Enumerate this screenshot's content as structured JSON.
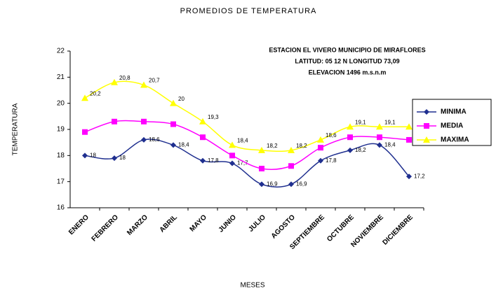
{
  "chart_data": {
    "type": "line",
    "title": "PROMEDIOS DE TEMPERATURA",
    "xlabel": "MESES",
    "ylabel": "TEMPERATURA",
    "annotations": [
      "ESTACION EL VIVERO MUNICIPIO DE MIRAFLORES",
      "LATITUD: 05 12 N     LONGITUD 73,09",
      "ELEVACION 1496 m.s.n.m"
    ],
    "categories": [
      "ENERO",
      "FEBRERO",
      "MARZO",
      "ABRIL",
      "MAYO",
      "JUNIO",
      "JULIO",
      "AGOSTO",
      "SEPTIEMBRE",
      "OCTUBRE",
      "NOVIEMBRE",
      "DICIEMBRE"
    ],
    "series": [
      {
        "name": "MINIMA",
        "color": "#1f2f8f",
        "marker": "diamond",
        "values": [
          18.0,
          17.9,
          18.6,
          18.4,
          17.8,
          17.7,
          16.9,
          16.9,
          17.8,
          18.2,
          18.4,
          17.2
        ],
        "value_labels": [
          "18",
          "18",
          "18,6",
          "18,4",
          "17,8",
          "17,7",
          "16,9",
          "16,9",
          "17,8",
          "18,2",
          "18,4",
          "17,2"
        ]
      },
      {
        "name": "MEDIA",
        "color": "#ff00ff",
        "marker": "square",
        "values": [
          18.9,
          19.3,
          19.3,
          19.2,
          18.7,
          18.0,
          17.5,
          17.6,
          18.3,
          18.7,
          18.7,
          18.6
        ]
      },
      {
        "name": "MAXIMA",
        "color": "#ffff00",
        "marker": "triangle",
        "values": [
          20.2,
          20.8,
          20.7,
          20.0,
          19.3,
          18.4,
          18.2,
          18.2,
          18.6,
          19.1,
          19.1,
          19.1
        ],
        "value_labels": [
          "20,2",
          "20,8",
          "20,7",
          "20",
          "19,3",
          "18,4",
          "18,2",
          "18,2",
          "18,6",
          "19,1",
          "19,1",
          "19,1"
        ]
      }
    ],
    "ylim": [
      16,
      22
    ],
    "yticks": [
      16,
      17,
      18,
      19,
      20,
      21,
      22
    ],
    "grid": false,
    "legend": "right"
  }
}
